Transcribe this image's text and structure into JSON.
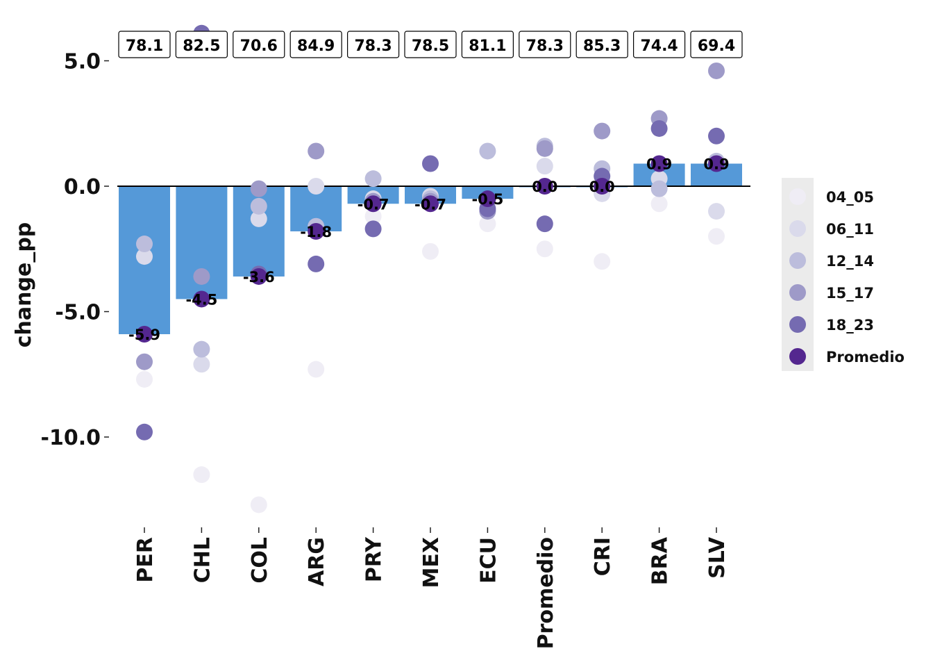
{
  "chart_data": {
    "type": "bar",
    "ylabel": "change_pp",
    "xlabel": "",
    "ylim": [
      -13.5,
      6.2
    ],
    "yticks": [
      -10,
      -5,
      0,
      5
    ],
    "ytick_labels": [
      "-10.0",
      "-5.0",
      "0.0",
      "5.0"
    ],
    "categories": [
      "PER",
      "CHL",
      "COL",
      "ARG",
      "PRY",
      "MEX",
      "ECU",
      "Promedio",
      "CRI",
      "BRA",
      "SLV"
    ],
    "values": [
      -5.9,
      -4.5,
      -3.6,
      -1.8,
      -0.7,
      -0.7,
      -0.5,
      0.0,
      0.0,
      0.9,
      0.9
    ],
    "bar_labels": [
      "-5.9",
      "-4.5",
      "-3.6",
      "-1.8",
      "-0.7",
      "-0.7",
      "-0.5",
      "0.0",
      "0.0",
      "0.9",
      "0.9"
    ],
    "top_labels": [
      "78.1",
      "82.5",
      "70.6",
      "84.9",
      "78.3",
      "78.5",
      "81.1",
      "78.3",
      "85.3",
      "74.4",
      "69.4"
    ],
    "bar_color": "#5599d8",
    "legend_position": "right",
    "points": [
      {
        "name": "04_05",
        "color": "#efedf5",
        "values": [
          -7.7,
          -11.5,
          -12.7,
          -7.3,
          -1.2,
          -2.6,
          -1.5,
          -2.5,
          -3.0,
          -0.7,
          -2.0
        ]
      },
      {
        "name": "06_11",
        "color": "#dadaeb",
        "values": [
          -2.8,
          -7.1,
          -1.3,
          0.0,
          -0.5,
          -0.4,
          -0.6,
          0.8,
          -0.3,
          0.3,
          -1.0
        ]
      },
      {
        "name": "12_14",
        "color": "#bcbddc",
        "values": [
          -2.3,
          -6.5,
          -0.8,
          -1.6,
          0.3,
          -0.5,
          1.4,
          1.6,
          0.7,
          -0.1,
          1.0
        ]
      },
      {
        "name": "15_17",
        "color": "#9e9ac8",
        "values": [
          -7.0,
          -3.6,
          -0.1,
          1.4,
          -0.6,
          -0.6,
          -1.0,
          1.5,
          2.2,
          2.7,
          4.6
        ]
      },
      {
        "name": "18_23",
        "color": "#756bb1",
        "values": [
          -9.8,
          6.1,
          -3.5,
          -3.1,
          -1.7,
          0.9,
          -0.9,
          -1.5,
          0.4,
          2.3,
          2.0
        ]
      },
      {
        "name": "Promedio",
        "color": "#54278f",
        "values": [
          -5.9,
          -4.5,
          -3.6,
          -1.8,
          -0.7,
          -0.7,
          -0.5,
          0.0,
          0.0,
          0.9,
          0.9
        ]
      }
    ]
  }
}
